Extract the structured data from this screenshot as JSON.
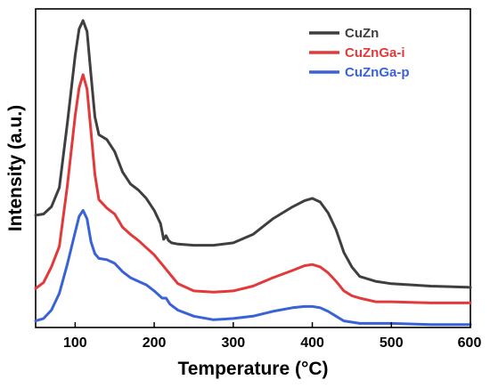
{
  "chart_data": {
    "type": "line",
    "title": "",
    "xlabel": "Temperature (°C)",
    "ylabel": "Intensity (a.u.)",
    "xlim": [
      50,
      600
    ],
    "x_ticks": [
      100,
      200,
      300,
      400,
      500,
      600
    ],
    "y_ticks_shown": false,
    "grid": false,
    "legend_position": "top-right",
    "series": [
      {
        "name": "CuZn",
        "color": "#3f3f3f",
        "x": [
          50,
          60,
          70,
          80,
          90,
          100,
          105,
          110,
          115,
          120,
          125,
          130,
          140,
          150,
          160,
          170,
          180,
          190,
          200,
          208,
          212,
          215,
          218,
          222,
          230,
          250,
          275,
          300,
          325,
          350,
          375,
          390,
          400,
          410,
          420,
          430,
          440,
          450,
          460,
          480,
          500,
          550,
          600
        ],
        "y": [
          0.69,
          0.7,
          0.76,
          0.92,
          1.45,
          2.02,
          2.24,
          2.31,
          2.22,
          1.86,
          1.51,
          1.36,
          1.32,
          1.22,
          1.05,
          0.95,
          0.9,
          0.83,
          0.73,
          0.62,
          0.49,
          0.52,
          0.48,
          0.46,
          0.45,
          0.44,
          0.44,
          0.46,
          0.53,
          0.66,
          0.76,
          0.81,
          0.83,
          0.8,
          0.71,
          0.57,
          0.38,
          0.26,
          0.18,
          0.14,
          0.12,
          0.1,
          0.09
        ]
      },
      {
        "name": "CuZnGa-i",
        "color": "#e23a3a",
        "x": [
          50,
          60,
          70,
          80,
          90,
          100,
          105,
          110,
          115,
          120,
          125,
          130,
          140,
          150,
          160,
          170,
          180,
          190,
          200,
          210,
          215,
          220,
          230,
          250,
          275,
          300,
          325,
          350,
          375,
          390,
          400,
          410,
          420,
          430,
          440,
          450,
          460,
          480,
          500,
          550,
          600
        ],
        "y": [
          0.08,
          0.13,
          0.26,
          0.43,
          0.93,
          1.52,
          1.75,
          1.86,
          1.74,
          1.39,
          1.03,
          0.82,
          0.75,
          0.7,
          0.59,
          0.53,
          0.48,
          0.42,
          0.36,
          0.28,
          0.24,
          0.2,
          0.12,
          0.06,
          0.05,
          0.06,
          0.1,
          0.17,
          0.23,
          0.27,
          0.28,
          0.26,
          0.21,
          0.14,
          0.06,
          0.02,
          0.0,
          -0.03,
          -0.03,
          -0.04,
          -0.04
        ]
      },
      {
        "name": "CuZnGa-p",
        "color": "#3a62d8",
        "x": [
          50,
          60,
          70,
          80,
          90,
          100,
          105,
          110,
          115,
          120,
          125,
          130,
          140,
          150,
          160,
          170,
          180,
          190,
          200,
          210,
          215,
          220,
          230,
          250,
          275,
          300,
          325,
          350,
          375,
          390,
          400,
          410,
          420,
          430,
          440,
          450,
          460,
          480,
          500,
          550,
          600
        ],
        "y": [
          -0.19,
          -0.17,
          -0.1,
          0.04,
          0.28,
          0.55,
          0.68,
          0.73,
          0.66,
          0.47,
          0.37,
          0.33,
          0.32,
          0.29,
          0.22,
          0.17,
          0.14,
          0.11,
          0.06,
          0.0,
          0.0,
          -0.05,
          -0.1,
          -0.15,
          -0.18,
          -0.17,
          -0.15,
          -0.11,
          -0.08,
          -0.07,
          -0.07,
          -0.08,
          -0.11,
          -0.15,
          -0.19,
          -0.2,
          -0.21,
          -0.21,
          -0.21,
          -0.22,
          -0.22
        ]
      }
    ]
  }
}
